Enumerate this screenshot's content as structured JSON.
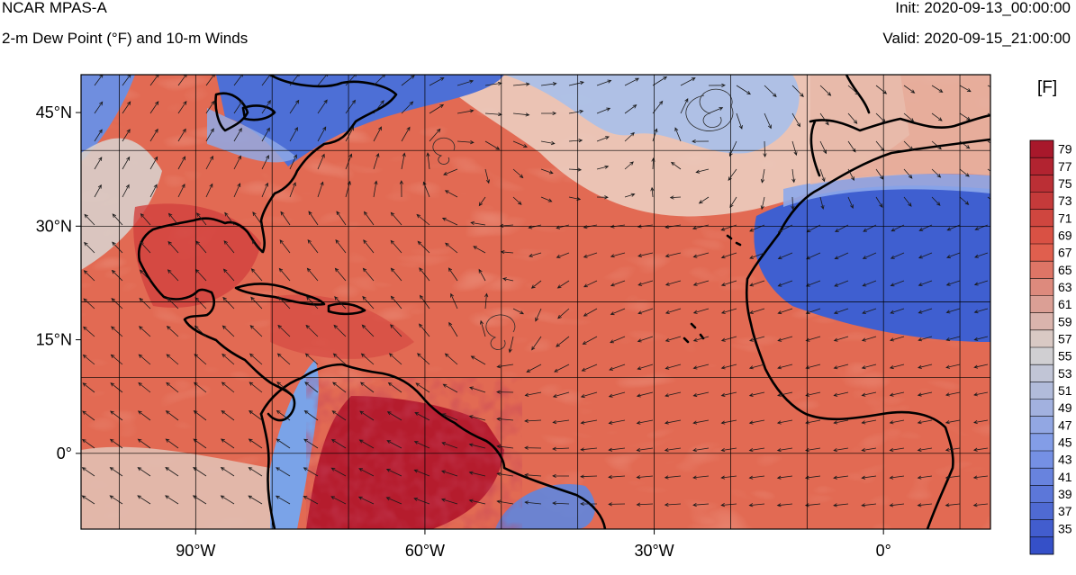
{
  "header": {
    "model": "NCAR MPAS-A",
    "field_title": "2-m Dew Point (°F) and 10-m Winds",
    "init": "Init: 2020-09-13_00:00:00",
    "valid": "Valid: 2020-09-15_21:00:00"
  },
  "map": {
    "lon_range": [
      -105,
      14
    ],
    "lat_range": [
      -10,
      50
    ],
    "lat_ticks": [
      {
        "value": 45,
        "label": "45°N"
      },
      {
        "value": 30,
        "label": "30°N"
      },
      {
        "value": 15,
        "label": "15°N"
      },
      {
        "value": 0,
        "label": "0°"
      }
    ],
    "lon_ticks": [
      {
        "value": -90,
        "label": "90°W"
      },
      {
        "value": -60,
        "label": "60°W"
      },
      {
        "value": -30,
        "label": "30°W"
      },
      {
        "value": 0,
        "label": "0°"
      }
    ],
    "grid_spacing_deg": 10,
    "grid": true
  },
  "colorbar": {
    "units": "[F]",
    "labels": [
      79,
      77,
      75,
      73,
      71,
      69,
      67,
      65,
      63,
      61,
      59,
      57,
      55,
      53,
      51,
      49,
      47,
      45,
      43,
      41,
      39,
      37,
      35
    ],
    "colors": {
      "warm_high": "#a8182b",
      "warm": "#e05a48",
      "neutral": "#d8d4d0",
      "cool": "#7f9ae8",
      "cool_low": "#3550c8"
    }
  },
  "colors": {
    "ocean_warm": "#e26a53",
    "coast": "#000000",
    "grid": "#000000",
    "vector": "#1a1a1a"
  }
}
